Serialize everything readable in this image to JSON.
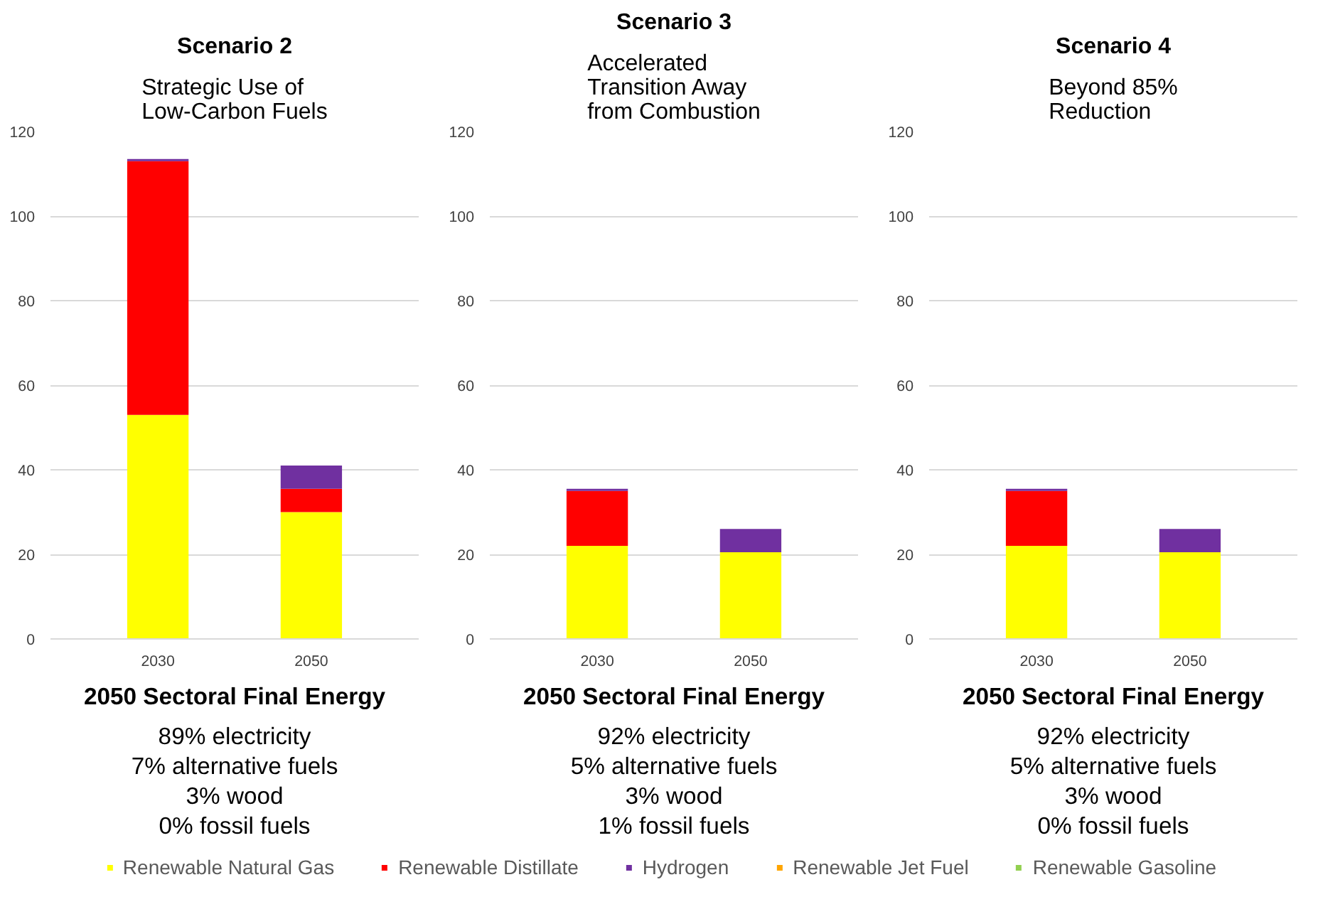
{
  "chart_data": [
    {
      "type": "bar",
      "stacked": true,
      "title": "Scenario 2",
      "subtitle": "Strategic Use of Low-Carbon Fuels",
      "categories": [
        "2030",
        "2050"
      ],
      "ylim": [
        0,
        120
      ],
      "yticks": [
        0,
        20,
        40,
        60,
        80,
        100,
        120
      ],
      "grid": "y",
      "legend": false,
      "series": [
        {
          "color": "#ffff00",
          "values": [
            53,
            30
          ]
        },
        {
          "color": "#ff0000",
          "values": [
            60,
            5.5
          ]
        },
        {
          "color": "#7030a0",
          "values": [
            0.5,
            5.5
          ]
        },
        {
          "color": "#ffa500",
          "values": [
            0,
            0
          ]
        },
        {
          "color": "#92d050",
          "values": [
            0,
            0
          ]
        }
      ],
      "annotations": [
        "2050 Sectoral Final Energy",
        "89% electricity",
        "7% alternative fuels",
        "3% wood",
        "0% fossil fuels"
      ]
    },
    {
      "type": "bar",
      "stacked": true,
      "title": "Scenario 3",
      "subtitle": "Accelerated Transition Away from Combustion",
      "categories": [
        "2030",
        "2050"
      ],
      "ylim": [
        0,
        120
      ],
      "yticks": [
        0,
        20,
        40,
        60,
        80,
        100,
        120
      ],
      "grid": "y",
      "legend": false,
      "series": [
        {
          "color": "#ffff00",
          "values": [
            22,
            20.5
          ]
        },
        {
          "color": "#ff0000",
          "values": [
            13,
            0
          ]
        },
        {
          "color": "#7030a0",
          "values": [
            0.5,
            5.5
          ]
        },
        {
          "color": "#ffa500",
          "values": [
            0,
            0
          ]
        },
        {
          "color": "#92d050",
          "values": [
            0,
            0
          ]
        }
      ],
      "annotations": [
        "2050 Sectoral Final Energy",
        "92% electricity",
        "5% alternative fuels",
        "3% wood",
        "1% fossil fuels"
      ]
    },
    {
      "type": "bar",
      "stacked": true,
      "title": "Scenario 4",
      "subtitle": "Beyond 85% Reduction",
      "categories": [
        "2030",
        "2050"
      ],
      "ylim": [
        0,
        120
      ],
      "yticks": [
        0,
        20,
        40,
        60,
        80,
        100,
        120
      ],
      "grid": "y",
      "legend": "bottom",
      "series": [
        {
          "name": "Renewable Natural Gas",
          "color": "#ffff00",
          "values": [
            22,
            20.5
          ]
        },
        {
          "name": "Renewable Distillate",
          "color": "#ff0000",
          "values": [
            13,
            0
          ]
        },
        {
          "name": "Hydrogen",
          "color": "#7030a0",
          "values": [
            0.5,
            5.5
          ]
        },
        {
          "name": "Renewable Jet Fuel",
          "color": "#ffa500",
          "values": [
            0,
            0
          ]
        },
        {
          "name": "Renewable Gasoline",
          "color": "#92d050",
          "values": [
            0,
            0
          ]
        }
      ],
      "annotations": [
        "2050 Sectoral Final Energy",
        "92% electricity",
        "5% alternative fuels",
        "3% wood",
        "0% fossil fuels"
      ]
    }
  ]
}
